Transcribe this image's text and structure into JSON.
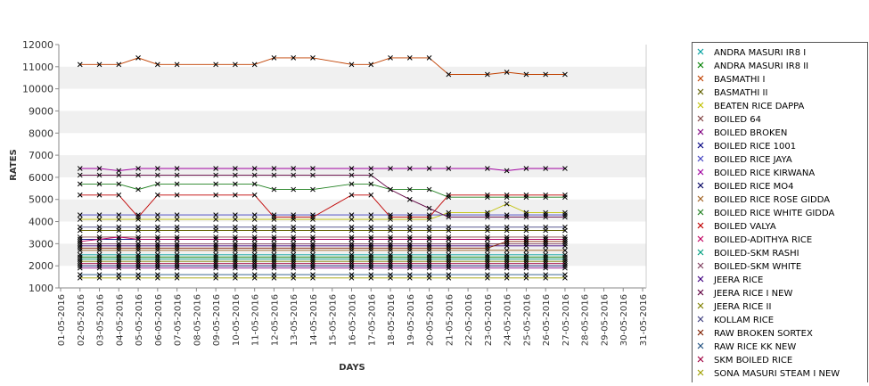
{
  "chart_data": {
    "type": "line",
    "title": "",
    "xlabel": "DAYS",
    "ylabel": "RATES",
    "ylim": [
      1000,
      12000
    ],
    "yticks": [
      1000,
      2000,
      3000,
      4000,
      5000,
      6000,
      7000,
      8000,
      9000,
      10000,
      11000,
      12000
    ],
    "grid": "alternating horizontal bands",
    "legend_position": "right",
    "categories": [
      "01-05-2016",
      "02-05-2016",
      "03-05-2016",
      "04-05-2016",
      "05-05-2016",
      "06-05-2016",
      "07-05-2016",
      "08-05-2016",
      "09-05-2016",
      "10-05-2016",
      "11-05-2016",
      "12-05-2016",
      "13-05-2016",
      "14-05-2016",
      "15-05-2016",
      "16-05-2016",
      "17-05-2016",
      "18-05-2016",
      "19-05-2016",
      "20-05-2016",
      "21-05-2016",
      "22-05-2016",
      "23-05-2016",
      "24-05-2016",
      "25-05-2016",
      "26-05-2016",
      "27-05-2016",
      "28-05-2016",
      "29-05-2016",
      "30-05-2016",
      "31-05-2016"
    ],
    "dates": [
      "02-05-2016",
      "03-05-2016",
      "04-05-2016",
      "05-05-2016",
      "06-05-2016",
      "07-05-2016",
      "09-05-2016",
      "10-05-2016",
      "11-05-2016",
      "12-05-2016",
      "13-05-2016",
      "14-05-2016",
      "16-05-2016",
      "17-05-2016",
      "18-05-2016",
      "19-05-2016",
      "20-05-2016",
      "21-05-2016",
      "23-05-2016",
      "24-05-2016",
      "25-05-2016",
      "26-05-2016",
      "27-05-2016"
    ],
    "series": [
      {
        "name": "ANDRA MASURI IR8 I",
        "color": "#00a0a0",
        "values": [
          2500,
          2500,
          2500,
          2500,
          2500,
          2500,
          2500,
          2500,
          2500,
          2500,
          2500,
          2500,
          2500,
          2500,
          2500,
          2500,
          2500,
          2500,
          2500,
          2500,
          2500,
          2500,
          2500
        ]
      },
      {
        "name": "ANDRA MASURI IR8 II",
        "color": "#008000",
        "values": [
          2400,
          2400,
          2400,
          2400,
          2400,
          2400,
          2400,
          2400,
          2400,
          2400,
          2400,
          2400,
          2400,
          2400,
          2400,
          2400,
          2400,
          2400,
          2400,
          2400,
          2400,
          2400,
          2400
        ]
      },
      {
        "name": "BASMATHI I",
        "color": "#c04000",
        "values": [
          11100,
          11100,
          11100,
          11400,
          11100,
          11100,
          11100,
          11100,
          11100,
          11400,
          11400,
          11400,
          11100,
          11100,
          11400,
          11400,
          11400,
          10650,
          10650,
          10750,
          10650,
          10650,
          10650
        ]
      },
      {
        "name": "BASMATHI II",
        "color": "#606000",
        "values": [
          3600,
          3600,
          3600,
          3600,
          3600,
          3600,
          3600,
          3600,
          3600,
          3600,
          3600,
          3600,
          3600,
          3600,
          3600,
          3600,
          3600,
          3600,
          3600,
          3600,
          3600,
          3600,
          3600
        ]
      },
      {
        "name": "BEATEN RICE DAPPA",
        "color": "#c0c000",
        "values": [
          4100,
          4100,
          4100,
          4100,
          4100,
          4100,
          4100,
          4100,
          4100,
          4100,
          4100,
          4100,
          4100,
          4100,
          4100,
          4100,
          4100,
          4400,
          4400,
          4800,
          4400,
          4400,
          4400
        ]
      },
      {
        "name": "BOILED 64",
        "color": "#804040",
        "values": [
          3300,
          3300,
          3300,
          3300,
          3300,
          3300,
          3300,
          3300,
          3300,
          3300,
          3300,
          3300,
          3300,
          3300,
          3300,
          3300,
          3300,
          3300,
          3300,
          3300,
          3300,
          3300,
          3300
        ]
      },
      {
        "name": "BOILED BROKEN",
        "color": "#800080",
        "values": [
          1900,
          1900,
          1900,
          1900,
          1900,
          1900,
          1900,
          1900,
          1900,
          1900,
          1900,
          1900,
          1900,
          1900,
          1900,
          1900,
          1900,
          1900,
          1900,
          1900,
          1900,
          1900,
          1900
        ]
      },
      {
        "name": "BOILED RICE 1001",
        "color": "#000080",
        "values": [
          3200,
          3200,
          3200,
          3200,
          3200,
          3200,
          3200,
          3200,
          3200,
          3200,
          3200,
          3200,
          3200,
          3200,
          3200,
          3200,
          3200,
          3200,
          3200,
          3200,
          3200,
          3200,
          3200
        ]
      },
      {
        "name": "BOILED RICE JAYA",
        "color": "#4040c0",
        "values": [
          4300,
          4300,
          4300,
          4300,
          4300,
          4300,
          4300,
          4300,
          4300,
          4300,
          4300,
          4300,
          4300,
          4300,
          4300,
          4300,
          4300,
          4300,
          4300,
          4300,
          4300,
          4300,
          4300
        ]
      },
      {
        "name": "BOILED RICE KIRWANA",
        "color": "#a000a0",
        "values": [
          6400,
          6400,
          6300,
          6400,
          6400,
          6400,
          6400,
          6400,
          6400,
          6400,
          6400,
          6400,
          6400,
          6400,
          6400,
          6400,
          6400,
          6400,
          6400,
          6300,
          6400,
          6400,
          6400
        ]
      },
      {
        "name": "BOILED RICE MO4",
        "color": "#000060",
        "values": [
          2000,
          2000,
          2000,
          2000,
          2000,
          2000,
          2000,
          2000,
          2000,
          2000,
          2000,
          2000,
          2000,
          2000,
          2000,
          2000,
          2000,
          2000,
          2000,
          2000,
          2000,
          2000,
          2000
        ]
      },
      {
        "name": "BOILED RICE ROSE GIDDA",
        "color": "#a06020",
        "values": [
          2700,
          2700,
          2700,
          2700,
          2700,
          2700,
          2700,
          2700,
          2700,
          2700,
          2700,
          2700,
          2700,
          2700,
          2700,
          2700,
          2700,
          2700,
          2700,
          2700,
          2700,
          2700,
          2700
        ]
      },
      {
        "name": "BOILED RICE WHITE GIDDA",
        "color": "#208020",
        "values": [
          5700,
          5700,
          5700,
          5450,
          5700,
          5700,
          5700,
          5700,
          5700,
          5450,
          5450,
          5450,
          5700,
          5700,
          5450,
          5450,
          5450,
          5100,
          5100,
          5100,
          5100,
          5100,
          5100
        ]
      },
      {
        "name": "BOILED VALYA",
        "color": "#c00000",
        "values": [
          5200,
          5200,
          5200,
          4200,
          5200,
          5200,
          5200,
          5200,
          5200,
          4200,
          4200,
          4200,
          5200,
          5200,
          4200,
          4200,
          4200,
          5200,
          5200,
          5200,
          5200,
          5200,
          5200
        ]
      },
      {
        "name": "BOILED-ADITHYA RICE",
        "color": "#c00060",
        "values": [
          3100,
          3200,
          3300,
          3200,
          3200,
          3200,
          3200,
          3200,
          3200,
          3200,
          3200,
          3200,
          3200,
          3200,
          3200,
          3200,
          3200,
          3200,
          3200,
          3200,
          3200,
          3200,
          3200
        ]
      },
      {
        "name": "BOILED-SKM RASHI",
        "color": "#00a080",
        "values": [
          2300,
          2300,
          2300,
          2300,
          2300,
          2300,
          2300,
          2300,
          2300,
          2300,
          2300,
          2300,
          2300,
          2300,
          2300,
          2300,
          2300,
          2300,
          2300,
          2300,
          2300,
          2300,
          2300
        ]
      },
      {
        "name": "BOILED-SKM WHITE",
        "color": "#804060",
        "values": [
          3000,
          3000,
          3000,
          3000,
          3000,
          3000,
          3000,
          3000,
          3000,
          3000,
          3000,
          3000,
          3000,
          3000,
          3000,
          3000,
          3000,
          3000,
          3000,
          3000,
          3000,
          3000,
          3000
        ]
      },
      {
        "name": "JEERA RICE",
        "color": "#400080",
        "values": [
          2900,
          2900,
          2900,
          2900,
          2900,
          2900,
          2900,
          2900,
          2900,
          2900,
          2900,
          2900,
          2900,
          2900,
          2900,
          2900,
          2900,
          2900,
          2900,
          2900,
          2900,
          2900,
          2900
        ]
      },
      {
        "name": "JEERA RICE I NEW",
        "color": "#600040",
        "values": [
          6100,
          6100,
          6100,
          6100,
          6100,
          6100,
          6100,
          6100,
          6100,
          6100,
          6100,
          6100,
          6100,
          6100,
          5450,
          5000,
          4600,
          4200,
          4200,
          4200,
          4200,
          4200,
          4200
        ]
      },
      {
        "name": "JEERA RICE II",
        "color": "#808000",
        "values": [
          2200,
          2200,
          2200,
          2200,
          2200,
          2200,
          2200,
          2200,
          2200,
          2200,
          2200,
          2200,
          2200,
          2200,
          2200,
          2200,
          2200,
          2200,
          2200,
          2200,
          2200,
          2200,
          2200
        ]
      },
      {
        "name": "KOLLAM RICE",
        "color": "#404080",
        "values": [
          3750,
          3750,
          3750,
          3750,
          3750,
          3750,
          3750,
          3750,
          3750,
          3750,
          3750,
          3750,
          3750,
          3750,
          3750,
          3750,
          3750,
          3750,
          3750,
          3750,
          3750,
          3750,
          3750
        ]
      },
      {
        "name": "RAW BROKEN SORTEX",
        "color": "#802000",
        "values": [
          2800,
          2800,
          2800,
          2800,
          2800,
          2800,
          2800,
          2800,
          2800,
          2800,
          2800,
          2800,
          2800,
          2800,
          2800,
          2800,
          2800,
          2800,
          2800,
          3100,
          3100,
          3100,
          3100
        ]
      },
      {
        "name": "RAW RICE KK NEW",
        "color": "#205080",
        "values": [
          1600,
          1600,
          1600,
          1600,
          1600,
          1600,
          1600,
          1600,
          1600,
          1600,
          1600,
          1600,
          1600,
          1600,
          1600,
          1600,
          1600,
          1600,
          1600,
          1600,
          1600,
          1600,
          1600
        ]
      },
      {
        "name": "SKM BOILED RICE",
        "color": "#a00040",
        "values": [
          2100,
          2100,
          2100,
          2100,
          2100,
          2100,
          2100,
          2100,
          2100,
          2100,
          2100,
          2100,
          2100,
          2100,
          2100,
          2100,
          2100,
          2100,
          2100,
          2100,
          2100,
          2100,
          2100
        ]
      },
      {
        "name": "SONA MASURI STEAM I NEW",
        "color": "#a0a000",
        "values": [
          1450,
          1450,
          1450,
          1450,
          1450,
          1450,
          1450,
          1450,
          1450,
          1450,
          1450,
          1450,
          1450,
          1450,
          1450,
          1450,
          1450,
          1450,
          1450,
          1450,
          1450,
          1450,
          1450
        ]
      }
    ]
  }
}
